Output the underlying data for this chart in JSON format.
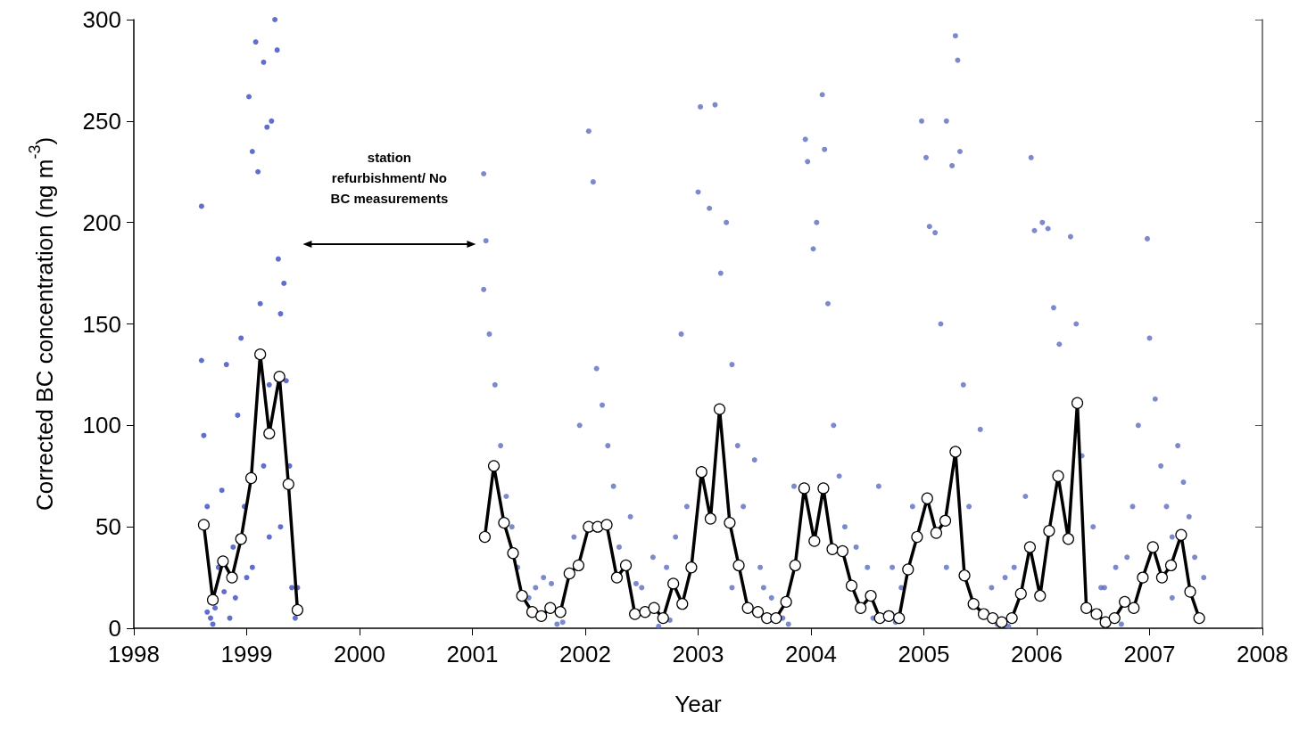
{
  "chart_data": {
    "type": "scatter",
    "xlabel": "Year",
    "ylabel": "Corrected BC concentration (ng m$^{-3}$)",
    "xlim": [
      1998,
      2008
    ],
    "xticks": [
      1998,
      1999,
      2000,
      2001,
      2002,
      2003,
      2004,
      2005,
      2006,
      2007,
      2008
    ],
    "ylim": [
      0,
      300
    ],
    "yticks": [
      0,
      50,
      100,
      150,
      200,
      250,
      300
    ],
    "grid": false,
    "marker": "circle",
    "annotations": [
      "station\nrefurbishment/ No\nBC measurements"
    ],
    "series": [
      {
        "color": "#3a4bbf",
        "x": [
          1998.6,
          1998.6,
          1998.62,
          1998.65,
          1998.68,
          1998.72,
          1998.75,
          1998.78,
          1998.82,
          1998.85,
          1998.88,
          1998.92,
          1998.95,
          1998.98,
          1999.02,
          1999.05,
          1999.08,
          1999.1,
          1999.12,
          1999.15,
          1999.18,
          1999.2,
          1999.22,
          1999.25,
          1999.27,
          1999.28,
          1999.3,
          1999.33,
          1999.35,
          1999.38,
          1999.4,
          1999.43,
          1999.45,
          1999.05,
          1999.15,
          1999.3,
          1998.9,
          1998.7,
          1998.65,
          1998.8,
          1999.0,
          1999.2
        ],
        "values": [
          208,
          132,
          95,
          60,
          5,
          10,
          30,
          68,
          130,
          5,
          40,
          105,
          143,
          60,
          262,
          235,
          289,
          225,
          160,
          279,
          247,
          120,
          250,
          300,
          285,
          182,
          155,
          170,
          122,
          80,
          20,
          5,
          20,
          30,
          80,
          50,
          15,
          2,
          8,
          18,
          25,
          45
        ]
      },
      {
        "color": "#5a6bc0",
        "x": [
          2001.1,
          2001.12,
          2001.1,
          2001.15,
          2001.2,
          2001.25,
          2001.3,
          2001.35,
          2001.4,
          2001.5,
          2001.63,
          2001.7,
          2001.8,
          2001.9,
          2001.95,
          2002.03,
          2002.07,
          2002.1,
          2002.15,
          2002.2,
          2002.25,
          2002.3,
          2002.4,
          2002.5,
          2002.6,
          2002.72,
          2002.75,
          2002.8,
          2002.85,
          2002.9,
          2003.0,
          2003.02,
          2003.1,
          2003.15,
          2003.2,
          2003.25,
          2003.3,
          2003.35,
          2003.4,
          2003.5,
          2003.55,
          2003.65,
          2003.75,
          2003.85,
          2003.95,
          2003.97,
          2004.02,
          2004.05,
          2004.1,
          2004.12,
          2004.15,
          2004.2,
          2004.25,
          2004.3,
          2004.4,
          2004.5,
          2004.6,
          2004.72,
          2004.8,
          2004.9,
          2004.98,
          2005.02,
          2005.05,
          2005.1,
          2005.15,
          2005.2,
          2005.25,
          2005.28,
          2005.3,
          2005.32,
          2005.35,
          2005.4,
          2005.5,
          2005.6,
          2005.72,
          2005.8,
          2005.9,
          2005.95,
          2005.98,
          2006.05,
          2006.1,
          2006.15,
          2006.2,
          2006.3,
          2006.35,
          2006.4,
          2006.5,
          2006.6,
          2006.7,
          2006.8,
          2006.85,
          2006.9,
          2006.98,
          2007.0,
          2007.05,
          2007.1,
          2007.15,
          2007.2,
          2007.25,
          2007.3,
          2007.35,
          2007.4,
          2007.48,
          2001.56,
          2001.75,
          2002.45,
          2002.65,
          2003.58,
          2003.8,
          2004.55,
          2004.75,
          2005.65,
          2005.75,
          2006.57,
          2006.75,
          2007.2,
          2003.3,
          2005.2
        ],
        "values": [
          224,
          191,
          167,
          145,
          120,
          90,
          65,
          50,
          30,
          15,
          25,
          22,
          3,
          45,
          100,
          245,
          220,
          128,
          110,
          90,
          70,
          40,
          55,
          20,
          35,
          30,
          4,
          45,
          145,
          60,
          215,
          257,
          207,
          258,
          175,
          200,
          130,
          90,
          60,
          83,
          30,
          15,
          5,
          70,
          241,
          230,
          187,
          200,
          263,
          236,
          160,
          100,
          75,
          50,
          40,
          30,
          70,
          30,
          20,
          60,
          250,
          232,
          198,
          195,
          150,
          250,
          228,
          292,
          280,
          235,
          120,
          60,
          98,
          20,
          25,
          30,
          65,
          232,
          196,
          200,
          197,
          158,
          140,
          193,
          150,
          85,
          50,
          20,
          30,
          35,
          60,
          100,
          192,
          143,
          113,
          80,
          60,
          45,
          90,
          72,
          55,
          35,
          25,
          20,
          2,
          22,
          1,
          20,
          2,
          5,
          3,
          2,
          1,
          20,
          2,
          15,
          20,
          30
        ]
      },
      {
        "type": "line",
        "color": "#000000",
        "x": [
          1998.62,
          1998.7,
          1998.79,
          1998.87,
          1998.95,
          1999.04,
          1999.12,
          1999.2,
          1999.29,
          1999.37,
          1999.45
        ],
        "values": [
          51,
          14,
          33,
          25,
          44,
          74,
          135,
          96,
          124,
          71,
          9
        ]
      },
      {
        "type": "line",
        "color": "#000000",
        "x": [
          2001.11,
          2001.19,
          2001.28,
          2001.36,
          2001.44,
          2001.53,
          2001.61,
          2001.69,
          2001.78,
          2001.86,
          2001.94,
          2002.03,
          2002.11,
          2002.19,
          2002.28,
          2002.36,
          2002.44,
          2002.53,
          2002.61,
          2002.69,
          2002.78,
          2002.86,
          2002.94,
          2003.03,
          2003.11,
          2003.19,
          2003.28,
          2003.36,
          2003.44,
          2003.53,
          2003.61,
          2003.69,
          2003.78,
          2003.86,
          2003.94,
          2004.03,
          2004.11,
          2004.19,
          2004.28,
          2004.36,
          2004.44,
          2004.53,
          2004.61,
          2004.69,
          2004.78,
          2004.86,
          2004.94,
          2005.03,
          2005.11,
          2005.19,
          2005.28,
          2005.36,
          2005.44,
          2005.53,
          2005.61,
          2005.69,
          2005.78,
          2005.86,
          2005.94,
          2006.03,
          2006.11,
          2006.19,
          2006.28,
          2006.36,
          2006.44,
          2006.53,
          2006.61,
          2006.69,
          2006.78,
          2006.86,
          2006.94,
          2007.03,
          2007.11,
          2007.19,
          2007.28,
          2007.36,
          2007.44
        ],
        "values": [
          45,
          80,
          52,
          37,
          16,
          8,
          6,
          10,
          8,
          27,
          31,
          50,
          50,
          51,
          25,
          31,
          7,
          8,
          10,
          5,
          22,
          12,
          30,
          77,
          54,
          108,
          52,
          31,
          10,
          8,
          5,
          5,
          13,
          31,
          69,
          43,
          69,
          39,
          38,
          21,
          10,
          16,
          5,
          6,
          5,
          29,
          45,
          64,
          47,
          53,
          87,
          26,
          12,
          7,
          5,
          3,
          5,
          17,
          40,
          16,
          48,
          75,
          44,
          111,
          10,
          7,
          3,
          5,
          13,
          10,
          25,
          40,
          25,
          31,
          46,
          18,
          5
        ]
      }
    ]
  }
}
